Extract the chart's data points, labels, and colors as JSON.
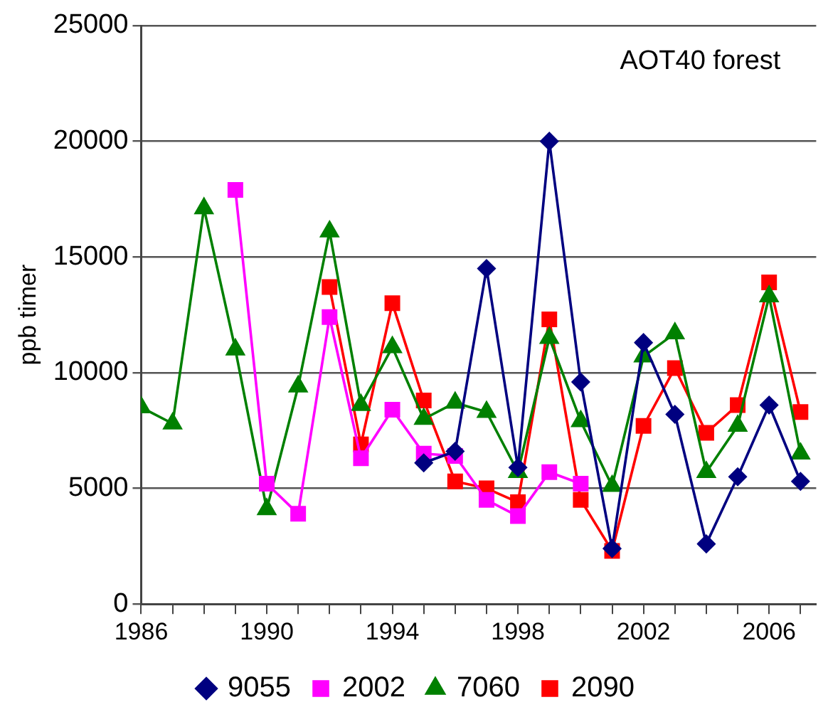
{
  "chart_data": {
    "type": "line",
    "ylabel": "ppb timer",
    "annotations": [
      "AOT40 forest"
    ],
    "xlim": [
      1986,
      2007.5
    ],
    "xticks": [
      1986,
      {
        "value": 1987,
        "label": null
      },
      {
        "value": 1988,
        "label": null
      },
      {
        "value": 1989,
        "label": null
      },
      1990,
      {
        "value": 1991,
        "label": null
      },
      {
        "value": 1992,
        "label": null
      },
      {
        "value": 1993,
        "label": null
      },
      1994,
      {
        "value": 1995,
        "label": null
      },
      {
        "value": 1996,
        "label": null
      },
      {
        "value": 1997,
        "label": null
      },
      1998,
      {
        "value": 1999,
        "label": null
      },
      {
        "value": 2000,
        "label": null
      },
      {
        "value": 2001,
        "label": null
      },
      2002,
      {
        "value": 2003,
        "label": null
      },
      {
        "value": 2004,
        "label": null
      },
      {
        "value": 2005,
        "label": null
      },
      2006,
      {
        "value": 2007,
        "label": null
      }
    ],
    "ylim": [
      0,
      25000
    ],
    "yticks": [
      0,
      5000,
      10000,
      15000,
      20000,
      25000
    ],
    "grid": "y",
    "legend": "bottom",
    "series": [
      {
        "name": "9055",
        "color": "#000080",
        "marker": "diamond",
        "x": [
          1995,
          1996,
          1997,
          1998,
          1999,
          2000,
          2001,
          2002,
          2003,
          2004,
          2005,
          2006,
          2007
        ],
        "values": [
          6100,
          6600,
          14500,
          5900,
          20000,
          9600,
          2400,
          11300,
          8200,
          2600,
          5500,
          8600,
          5300
        ]
      },
      {
        "name": "2002",
        "color": "#ff00ff",
        "marker": "square",
        "x": [
          1989,
          1990,
          1991,
          1992,
          1993,
          1994,
          1995,
          1996,
          1997,
          1998,
          1999,
          2000
        ],
        "values": [
          17900,
          5200,
          3900,
          12400,
          6300,
          8400,
          6500,
          6400,
          4500,
          3800,
          5700,
          5200
        ]
      },
      {
        "name": "7060",
        "color": "#008000",
        "marker": "triangle",
        "x": [
          1986,
          1987,
          1988,
          1989,
          1990,
          1991,
          1992,
          1993,
          1994,
          1995,
          1996,
          1997,
          1998,
          1999,
          2000,
          2001,
          2002,
          2003,
          2004,
          2005,
          2006,
          2007
        ],
        "values": [
          8500,
          7800,
          17100,
          11000,
          4100,
          9400,
          16100,
          8600,
          11100,
          8000,
          8700,
          8300,
          5700,
          11500,
          7900,
          5100,
          10700,
          11700,
          5700,
          7700,
          13300,
          6500
        ]
      },
      {
        "name": "2090",
        "color": "#ff0000",
        "marker": "square",
        "x": [
          1992,
          1993,
          1994,
          1995,
          1996,
          1997,
          1998,
          1999,
          2000,
          2001,
          2002,
          2003,
          2004,
          2005,
          2006,
          2007
        ],
        "values": [
          13700,
          6900,
          13000,
          8800,
          5300,
          5000,
          4400,
          12300,
          4500,
          2300,
          7700,
          10200,
          7400,
          8600,
          13900,
          8300
        ]
      }
    ]
  }
}
